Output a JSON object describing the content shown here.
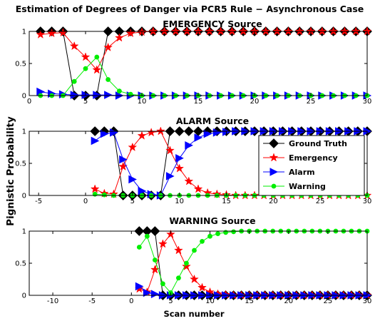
{
  "figure": {
    "title": "Estimation of Degrees of Danger via PCR5 Rule − Asynchronous Case",
    "ylabel": "Pignistic Probability",
    "xlabel": "Scan number"
  },
  "colors": {
    "ground_truth": "#000000",
    "emergency": "#ff0000",
    "alarm": "#0000ff",
    "warning": "#00ee00"
  },
  "legend": {
    "placement": "inside-right",
    "panel": 1,
    "entries": [
      "Ground Truth",
      "Emergency",
      "Alarm",
      "Warning"
    ]
  },
  "chart_data": [
    {
      "type": "line",
      "title": "EMERGENCY Source",
      "xlim": [
        0,
        30
      ],
      "ylim": [
        0,
        1
      ],
      "xticks": [
        0,
        5,
        10,
        15,
        20,
        25,
        30
      ],
      "yticks": [
        0,
        0.5,
        1
      ],
      "ytick_labels": [
        "0",
        "0.5",
        "1"
      ],
      "series": [
        {
          "name": "Ground Truth",
          "marker": "diamond",
          "x": [
            1,
            2,
            3,
            4,
            5,
            6,
            7,
            8,
            9,
            10,
            11,
            12,
            13,
            14,
            15,
            16,
            17,
            18,
            19,
            20,
            21,
            22,
            23,
            24,
            25,
            26,
            27,
            28,
            29,
            30
          ],
          "y": [
            1,
            1,
            1,
            0,
            0,
            0,
            1,
            1,
            1,
            1,
            1,
            1,
            1,
            1,
            1,
            1,
            1,
            1,
            1,
            1,
            1,
            1,
            1,
            1,
            1,
            1,
            1,
            1,
            1,
            1
          ]
        },
        {
          "name": "Emergency",
          "marker": "star",
          "x": [
            1,
            2,
            3,
            4,
            5,
            6,
            7,
            8,
            9,
            10,
            11,
            12,
            13,
            14,
            15,
            16,
            17,
            18,
            19,
            20,
            21,
            22,
            23,
            24,
            25,
            26,
            27,
            28,
            29,
            30
          ],
          "y": [
            0.95,
            0.97,
            0.98,
            0.77,
            0.6,
            0.4,
            0.75,
            0.9,
            0.97,
            0.99,
            1,
            1,
            1,
            1,
            1,
            1,
            1,
            1,
            1,
            1,
            1,
            1,
            1,
            1,
            1,
            1,
            1,
            1,
            1,
            1
          ]
        },
        {
          "name": "Alarm",
          "marker": "triangle-right",
          "x": [
            1,
            2,
            3,
            4,
            5,
            6,
            7,
            8,
            9,
            10,
            11,
            12,
            13,
            14,
            15,
            16,
            17,
            18,
            19,
            20,
            21,
            22,
            23,
            24,
            25,
            26,
            27,
            28,
            29,
            30
          ],
          "y": [
            0.06,
            0.03,
            0.02,
            0.01,
            0.01,
            0.01,
            0.01,
            0,
            0,
            0,
            0,
            0,
            0,
            0,
            0,
            0,
            0,
            0,
            0,
            0,
            0,
            0,
            0,
            0,
            0,
            0,
            0,
            0,
            0,
            0
          ]
        },
        {
          "name": "Warning",
          "marker": "circle",
          "x": [
            1,
            2,
            3,
            4,
            5,
            6,
            7,
            8,
            9,
            10,
            11,
            12,
            13,
            14,
            15,
            16,
            17,
            18,
            19,
            20,
            21,
            22,
            23,
            24,
            25,
            26,
            27,
            28,
            29,
            30
          ],
          "y": [
            0,
            0,
            0,
            0.22,
            0.42,
            0.6,
            0.25,
            0.07,
            0.02,
            0,
            0,
            0,
            0,
            0,
            0,
            0,
            0,
            0,
            0,
            0,
            0,
            0,
            0,
            0,
            0,
            0,
            0,
            0,
            0,
            0
          ]
        }
      ]
    },
    {
      "type": "line",
      "title": "ALARM Source",
      "xlim": [
        -6,
        30
      ],
      "ylim": [
        0,
        1
      ],
      "xticks": [
        -5,
        0,
        5,
        10,
        15,
        20,
        25,
        30
      ],
      "yticks": [
        0,
        0.5,
        1
      ],
      "ytick_labels": [
        "0",
        "0.5",
        "1"
      ],
      "series": [
        {
          "name": "Ground Truth",
          "marker": "diamond",
          "x": [
            1,
            2,
            3,
            4,
            5,
            6,
            7,
            8,
            9,
            10,
            11,
            12,
            13,
            14,
            15,
            16,
            17,
            18,
            19,
            20,
            21,
            22,
            23,
            24,
            25,
            26,
            27,
            28,
            29,
            30
          ],
          "y": [
            1,
            1,
            1,
            0,
            0,
            0,
            0,
            0,
            1,
            1,
            1,
            1,
            1,
            1,
            1,
            1,
            1,
            1,
            1,
            1,
            1,
            1,
            1,
            1,
            1,
            1,
            1,
            1,
            1,
            1
          ]
        },
        {
          "name": "Emergency",
          "marker": "star",
          "x": [
            1,
            2,
            3,
            4,
            5,
            6,
            7,
            8,
            9,
            10,
            11,
            12,
            13,
            14,
            15,
            16,
            17,
            18,
            19,
            20,
            21,
            22,
            23,
            24,
            25,
            26,
            27,
            28,
            29,
            30
          ],
          "y": [
            0.1,
            0.03,
            0.02,
            0.45,
            0.75,
            0.93,
            0.98,
            1,
            0.7,
            0.42,
            0.22,
            0.1,
            0.04,
            0.02,
            0.01,
            0,
            0,
            0,
            0,
            0,
            0,
            0,
            0,
            0,
            0,
            0,
            0,
            0,
            0,
            0
          ]
        },
        {
          "name": "Alarm",
          "marker": "triangle-right",
          "x": [
            1,
            2,
            3,
            4,
            5,
            6,
            7,
            8,
            9,
            10,
            11,
            12,
            13,
            14,
            15,
            16,
            17,
            18,
            19,
            20,
            21,
            22,
            23,
            24,
            25,
            26,
            27,
            28,
            29,
            30
          ],
          "y": [
            0.85,
            0.96,
            0.98,
            0.56,
            0.25,
            0.07,
            0.02,
            0,
            0.3,
            0.58,
            0.78,
            0.9,
            0.96,
            0.98,
            0.99,
            1,
            1,
            1,
            1,
            1,
            1,
            1,
            1,
            1,
            1,
            1,
            1,
            1,
            1,
            1
          ]
        },
        {
          "name": "Warning",
          "marker": "circle",
          "x": [
            1,
            2,
            3,
            4,
            5,
            6,
            7,
            8,
            9,
            10,
            11,
            12,
            13,
            14,
            15,
            16,
            17,
            18,
            19,
            20,
            21,
            22,
            23,
            24,
            25,
            26,
            27,
            28,
            29,
            30
          ],
          "y": [
            0.02,
            0.01,
            0,
            0,
            0,
            0,
            0,
            0,
            0,
            0,
            0,
            0,
            0,
            0,
            0,
            0,
            0,
            0,
            0,
            0,
            0,
            0,
            0,
            0,
            0,
            0,
            0,
            0,
            0,
            0
          ]
        }
      ]
    },
    {
      "type": "line",
      "title": "WARNING Source",
      "xlim": [
        -13,
        30
      ],
      "ylim": [
        0,
        1
      ],
      "xticks": [
        -10,
        -5,
        0,
        5,
        10,
        15,
        20,
        25,
        30
      ],
      "yticks": [
        0,
        0.5,
        1
      ],
      "ytick_labels": [
        "0",
        "0.5",
        "1"
      ],
      "series": [
        {
          "name": "Ground Truth",
          "marker": "diamond",
          "x": [
            1,
            2,
            3,
            4,
            5,
            6,
            7,
            8,
            9,
            10,
            11,
            12,
            13,
            14,
            15,
            16,
            17,
            18,
            19,
            20,
            21,
            22,
            23,
            24,
            25,
            26,
            27,
            28,
            29,
            30
          ],
          "y": [
            1,
            1,
            1,
            0,
            0,
            0,
            0,
            0,
            0,
            0,
            0,
            0,
            0,
            0,
            0,
            0,
            0,
            0,
            0,
            0,
            0,
            0,
            0,
            0,
            0,
            0,
            0,
            0,
            0,
            0
          ]
        },
        {
          "name": "Emergency",
          "marker": "star",
          "x": [
            1,
            2,
            3,
            4,
            5,
            6,
            7,
            8,
            9,
            10,
            11,
            12,
            13,
            14,
            15,
            16,
            17,
            18,
            19,
            20,
            21,
            22,
            23,
            24,
            25,
            26,
            27,
            28,
            29,
            30
          ],
          "y": [
            0.1,
            0.05,
            0.4,
            0.8,
            0.95,
            0.7,
            0.45,
            0.25,
            0.12,
            0.05,
            0.02,
            0.01,
            0,
            0,
            0,
            0,
            0,
            0,
            0,
            0,
            0,
            0,
            0,
            0,
            0,
            0,
            0,
            0,
            0,
            0
          ]
        },
        {
          "name": "Alarm",
          "marker": "triangle-right",
          "x": [
            1,
            2,
            3,
            4,
            5,
            6,
            7,
            8,
            9,
            10,
            11,
            12,
            13,
            14,
            15,
            16,
            17,
            18,
            19,
            20,
            21,
            22,
            23,
            24,
            25,
            26,
            27,
            28,
            29,
            30
          ],
          "y": [
            0.14,
            0.04,
            0.02,
            0,
            0,
            0,
            0,
            0,
            0,
            0,
            0,
            0,
            0,
            0,
            0,
            0,
            0,
            0,
            0,
            0,
            0,
            0,
            0,
            0,
            0,
            0,
            0,
            0,
            0,
            0
          ]
        },
        {
          "name": "Warning",
          "marker": "circle",
          "x": [
            1,
            2,
            3,
            4,
            5,
            6,
            7,
            8,
            9,
            10,
            11,
            12,
            13,
            14,
            15,
            16,
            17,
            18,
            19,
            20,
            21,
            22,
            23,
            24,
            25,
            26,
            27,
            28,
            29,
            30
          ],
          "y": [
            0.75,
            0.92,
            0.55,
            0.18,
            0.04,
            0.27,
            0.5,
            0.7,
            0.84,
            0.92,
            0.96,
            0.98,
            0.99,
            1,
            1,
            1,
            1,
            1,
            1,
            1,
            1,
            1,
            1,
            1,
            1,
            1,
            1,
            1,
            1,
            1
          ]
        }
      ]
    }
  ]
}
